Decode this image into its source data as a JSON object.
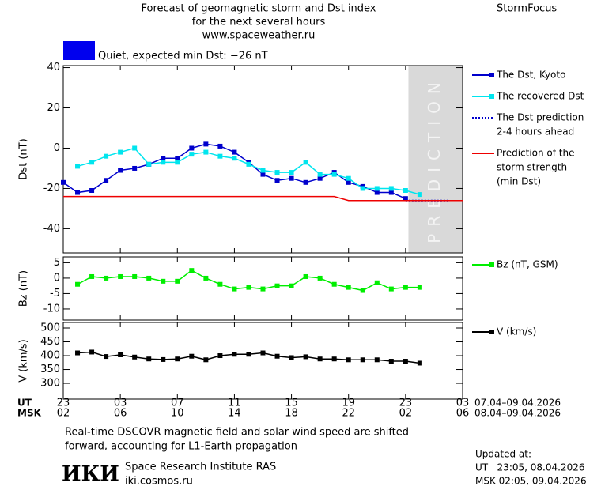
{
  "header": {
    "title": [
      "Forecast of geomagnetic storm and Dst index",
      "for the next several hours",
      "www.spaceweather.ru"
    ],
    "brand": "StormFocus",
    "status": "Quiet, expected min Dst: −26 nT",
    "status_color": "#0000ee"
  },
  "chart_data": [
    {
      "type": "line",
      "y_label": "Dst (nT)",
      "xlim": [
        0,
        28
      ],
      "ylim": [
        -52,
        41
      ],
      "yticks": [
        40,
        20,
        0,
        -20,
        -40
      ],
      "prediction_band": {
        "xlim": [
          24.2,
          28
        ],
        "label": "PREDICTION",
        "color": "#d9d9d9"
      },
      "series": [
        {
          "name": "The Dst, Kyoto",
          "color": "#0000cc",
          "style": "solid",
          "marker": true,
          "x": [
            0,
            1,
            2,
            3,
            4,
            5,
            6,
            7,
            8,
            9,
            10,
            11,
            12,
            13,
            14,
            15,
            16,
            17,
            18,
            19,
            20,
            21,
            22,
            23,
            24
          ],
          "values": [
            -17,
            -22,
            -21,
            -16,
            -11,
            -10,
            -8,
            -5,
            -5,
            0,
            2,
            1,
            -2,
            -7,
            -13,
            -16,
            -15,
            -17,
            -15,
            -12,
            -17,
            -19,
            -22,
            -22,
            -25
          ]
        },
        {
          "name": "The recovered Dst",
          "color": "#00e5ee",
          "style": "solid",
          "marker": true,
          "x": [
            1,
            2,
            3,
            4,
            5,
            6,
            7,
            8,
            9,
            10,
            11,
            12,
            13,
            14,
            15,
            16,
            17,
            18,
            19,
            20,
            21,
            22,
            23,
            24,
            25
          ],
          "values": [
            -9,
            -7,
            -4,
            -2,
            0,
            -8,
            -7,
            -7,
            -3,
            -2,
            -4,
            -5,
            -8,
            -11,
            -12,
            -12,
            -7,
            -13,
            -13,
            -15,
            -20,
            -20,
            -20,
            -21,
            -23
          ]
        },
        {
          "name": [
            "The Dst prediction",
            "2-4 hours ahead"
          ],
          "color": "#0000cc",
          "style": "dotted",
          "marker": false,
          "x": [
            24,
            27
          ],
          "values": [
            -26,
            -26
          ]
        },
        {
          "name": [
            "Prediction of the",
            "storm strength",
            "(min Dst)"
          ],
          "color": "#ee0000",
          "style": "solid",
          "marker": false,
          "x": [
            0,
            19,
            20,
            28
          ],
          "values": [
            -24,
            -24,
            -26,
            -26
          ]
        }
      ]
    },
    {
      "type": "line",
      "y_label": "Bz (nT)",
      "xlim": [
        0,
        28
      ],
      "ylim": [
        -13.6,
        6.9
      ],
      "yticks": [
        5,
        0,
        -5,
        -10
      ],
      "series": [
        {
          "name": "Bz (nT, GSM)",
          "color": "#00ee00",
          "style": "solid",
          "marker": true,
          "x": [
            1,
            2,
            3,
            4,
            5,
            6,
            7,
            8,
            9,
            10,
            11,
            12,
            13,
            14,
            15,
            16,
            17,
            18,
            19,
            20,
            21,
            22,
            23,
            24,
            25
          ],
          "values": [
            -2,
            0.5,
            0,
            0.5,
            0.5,
            0,
            -1,
            -1,
            2.5,
            0,
            -2,
            -3.5,
            -3,
            -3.5,
            -2.5,
            -2.5,
            0.5,
            0,
            -2,
            -3,
            -4,
            -1.5,
            -3.5,
            -3,
            -3
          ]
        }
      ]
    },
    {
      "type": "line",
      "y_label": "V (km/s)",
      "xlim": [
        0,
        28
      ],
      "ylim": [
        243,
        520
      ],
      "yticks": [
        500,
        450,
        400,
        350,
        300
      ],
      "series": [
        {
          "name": "V (km/s)",
          "color": "#000000",
          "style": "solid",
          "marker": true,
          "x": [
            1,
            2,
            3,
            4,
            5,
            6,
            7,
            8,
            9,
            10,
            11,
            12,
            13,
            14,
            15,
            16,
            17,
            18,
            19,
            20,
            21,
            22,
            23,
            24,
            25
          ],
          "values": [
            410,
            413,
            397,
            403,
            395,
            388,
            386,
            388,
            398,
            385,
            400,
            405,
            405,
            410,
            398,
            393,
            396,
            388,
            388,
            385,
            385,
            385,
            380,
            380,
            373
          ]
        }
      ]
    }
  ],
  "time_axis": {
    "rows": [
      {
        "label": "UT",
        "range": "07.04–09.04.2026",
        "ticks": [
          {
            "value": 0,
            "label": "23"
          },
          {
            "value": 4,
            "label": "03"
          },
          {
            "value": 8,
            "label": "07"
          },
          {
            "value": 12,
            "label": "11"
          },
          {
            "value": 16,
            "label": "15"
          },
          {
            "value": 20,
            "label": "19"
          },
          {
            "value": 24,
            "label": "23"
          },
          {
            "value": 28,
            "label": "03"
          }
        ]
      },
      {
        "label": "MSK",
        "range": "08.04–09.04.2026",
        "ticks": [
          {
            "value": 0,
            "label": "02"
          },
          {
            "value": 4,
            "label": "06"
          },
          {
            "value": 8,
            "label": "10"
          },
          {
            "value": 12,
            "label": "14"
          },
          {
            "value": 16,
            "label": "18"
          },
          {
            "value": 20,
            "label": "22"
          },
          {
            "value": 24,
            "label": "02"
          },
          {
            "value": 28,
            "label": "06"
          }
        ]
      }
    ]
  },
  "footer": {
    "note": [
      "Real-time DSCOVR magnetic field and solar wind speed are shifted",
      "forward, accounting for L1-Earth propagation"
    ],
    "logo": "ИКИ",
    "institute": "Space Research Institute RAS",
    "site": "iki.cosmos.ru",
    "updated": [
      "Updated at:",
      "UT   23:05, 08.04.2026",
      "MSK 02:05, 09.04.2026"
    ]
  }
}
